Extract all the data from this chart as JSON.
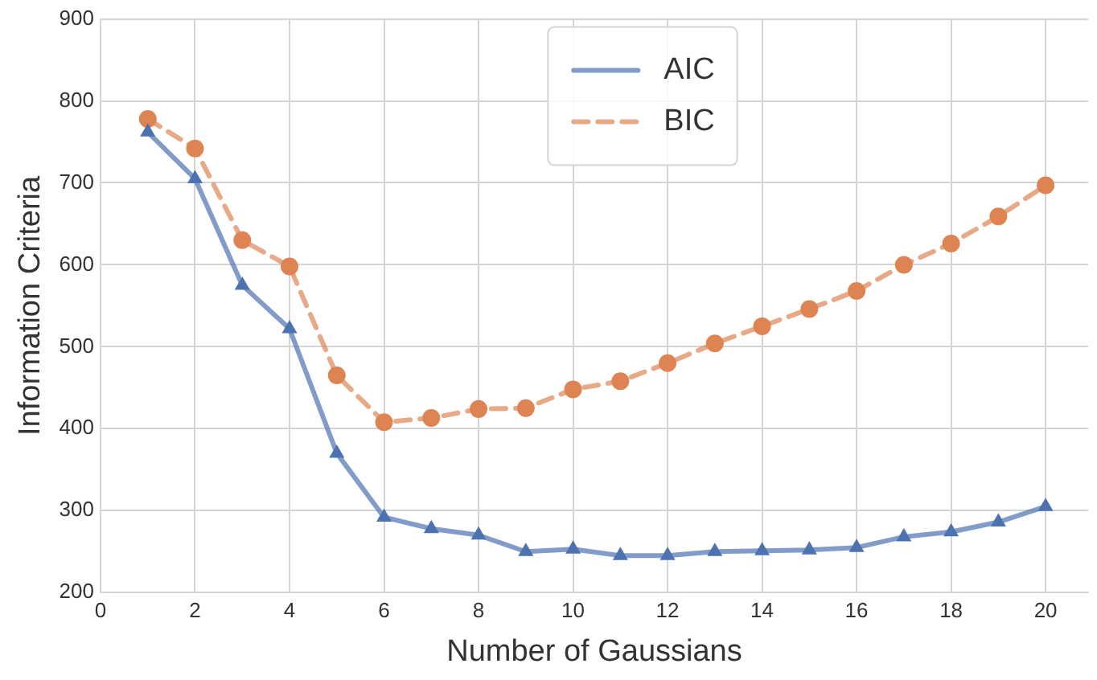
{
  "chart_data": {
    "type": "line",
    "xlabel": "Number of Gaussians",
    "ylabel": "Information Criteria",
    "x": [
      1,
      2,
      3,
      4,
      5,
      6,
      7,
      8,
      9,
      10,
      11,
      12,
      13,
      14,
      15,
      16,
      17,
      18,
      19,
      20
    ],
    "series": [
      {
        "name": "AIC",
        "color": "#4c72b0",
        "marker": "triangle",
        "line_style": "solid",
        "values": [
          762,
          705,
          575,
          522,
          370,
          292,
          278,
          270,
          250,
          253,
          245,
          245,
          250,
          251,
          252,
          255,
          268,
          274,
          286,
          305
        ]
      },
      {
        "name": "BIC",
        "color": "#dd8452",
        "marker": "circle",
        "line_style": "dashed",
        "values": [
          778,
          742,
          630,
          598,
          465,
          408,
          413,
          424,
          425,
          448,
          458,
          480,
          504,
          525,
          546,
          568,
          600,
          626,
          659,
          697
        ]
      }
    ],
    "xlim": [
      0,
      20.9
    ],
    "xticks": [
      0,
      2,
      4,
      6,
      8,
      10,
      12,
      14,
      16,
      18,
      20
    ],
    "ylim": [
      200,
      900
    ],
    "yticks": [
      200,
      300,
      400,
      500,
      600,
      700,
      800,
      900
    ],
    "grid": true,
    "legend": "top"
  }
}
